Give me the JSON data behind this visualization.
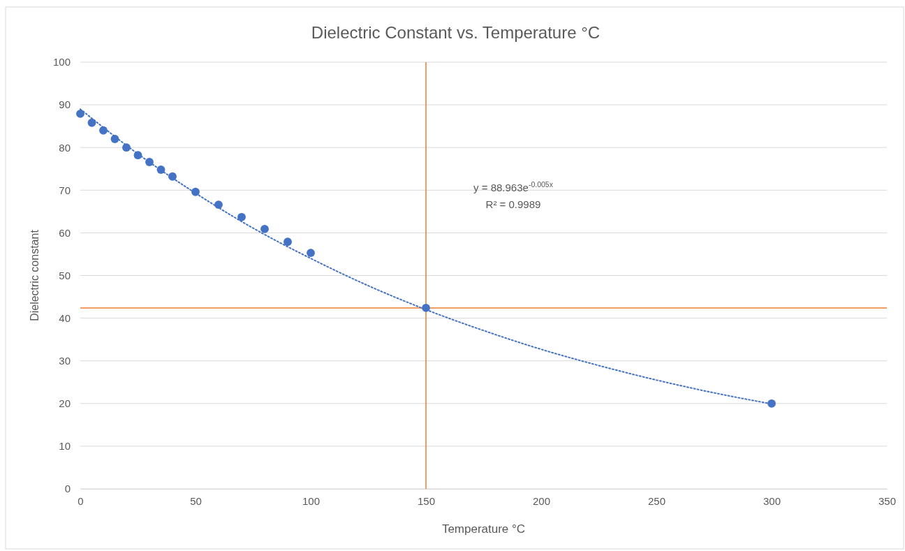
{
  "chart_data": {
    "type": "scatter",
    "title": "Dielectric Constant vs. Temperature °C",
    "xlabel": "Temperature °C",
    "ylabel": "Dielectric constant",
    "xlim": [
      0,
      350
    ],
    "xticks": [
      0,
      50,
      100,
      150,
      200,
      250,
      300,
      350
    ],
    "ylim": [
      0,
      100
    ],
    "yticks": [
      0,
      10,
      20,
      30,
      40,
      50,
      60,
      70,
      80,
      90,
      100
    ],
    "grid": "y",
    "marker": "circle",
    "series": [
      {
        "color": "#4472c4",
        "x": [
          0,
          5,
          10,
          15,
          20,
          25,
          30,
          35,
          40,
          50,
          60,
          70,
          80,
          90,
          100,
          150,
          300
        ],
        "values": [
          87.9,
          85.8,
          84,
          82,
          80,
          78.2,
          76.6,
          74.8,
          73.2,
          69.6,
          66.6,
          63.7,
          60.9,
          57.9,
          55.3,
          42.4,
          20
        ]
      },
      {
        "type": "line",
        "color": "#4472c4",
        "line_style": "dotted",
        "marker": "none",
        "x": [
          0,
          25,
          50,
          75,
          100,
          125,
          150,
          175,
          200,
          225,
          250,
          275,
          300
        ],
        "values": [
          89,
          78.5,
          69.3,
          61.1,
          54,
          47.6,
          42,
          37.1,
          32.7,
          28.9,
          25.5,
          22.5,
          19.9
        ]
      }
    ],
    "ref_lines": [
      {
        "axis": "y",
        "value": 42.4,
        "color": "#ed7d31"
      },
      {
        "axis": "x",
        "value": 150,
        "color": "#ed7d31"
      }
    ],
    "annotations": [
      "y = 88.963e$^{-0.005x}$",
      "R² = 0.9989"
    ]
  }
}
